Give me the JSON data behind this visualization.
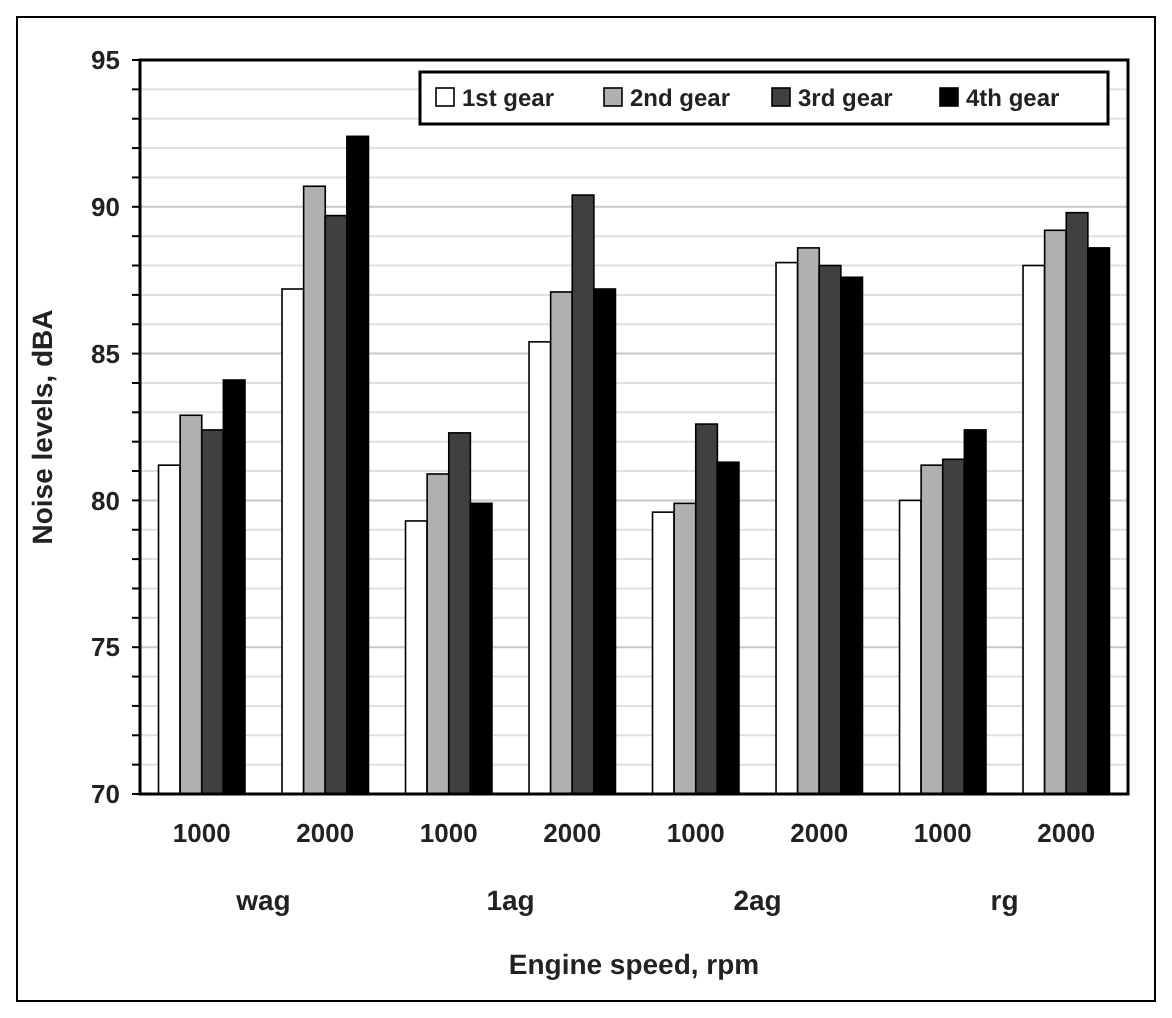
{
  "chart_data": {
    "type": "bar",
    "xlabel": "Engine speed, rpm",
    "ylabel": "Noise levels, dBA",
    "categories": [
      "1000",
      "2000",
      "1000",
      "2000",
      "1000",
      "2000",
      "1000",
      "2000"
    ],
    "annotations": [
      "wag",
      "1ag",
      "2ag",
      "rg"
    ],
    "series": [
      {
        "name": "1st gear",
        "color": "#ffffff",
        "values": [
          81.2,
          87.2,
          79.3,
          85.4,
          79.6,
          88.1,
          80.0,
          88.0
        ]
      },
      {
        "name": "2nd gear",
        "color": "#b0b0b0",
        "values": [
          82.9,
          90.7,
          80.9,
          87.1,
          79.9,
          88.6,
          81.2,
          89.2
        ]
      },
      {
        "name": "3rd gear",
        "color": "#404040",
        "values": [
          82.4,
          89.7,
          82.3,
          90.4,
          82.6,
          88.0,
          81.4,
          89.8
        ]
      },
      {
        "name": "4th gear",
        "color": "#000000",
        "values": [
          84.1,
          92.4,
          79.9,
          87.2,
          81.3,
          87.6,
          82.4,
          88.6
        ]
      }
    ],
    "ylim": [
      70,
      95
    ],
    "yticks": [
      70,
      {
        "value": 71,
        "label": null
      },
      {
        "value": 72,
        "label": null
      },
      {
        "value": 73,
        "label": null
      },
      {
        "value": 74,
        "label": null
      },
      75,
      {
        "value": 76,
        "label": null
      },
      {
        "value": 77,
        "label": null
      },
      {
        "value": 78,
        "label": null
      },
      {
        "value": 79,
        "label": null
      },
      80,
      {
        "value": 81,
        "label": null
      },
      {
        "value": 82,
        "label": null
      },
      {
        "value": 83,
        "label": null
      },
      {
        "value": 84,
        "label": null
      },
      85,
      {
        "value": 86,
        "label": null
      },
      {
        "value": 87,
        "label": null
      },
      {
        "value": 88,
        "label": null
      },
      {
        "value": 89,
        "label": null
      },
      90,
      {
        "value": 91,
        "label": null
      },
      {
        "value": 92,
        "label": null
      },
      {
        "value": 93,
        "label": null
      },
      {
        "value": 94,
        "label": null
      },
      95
    ],
    "grid": true,
    "legend": "top right"
  }
}
